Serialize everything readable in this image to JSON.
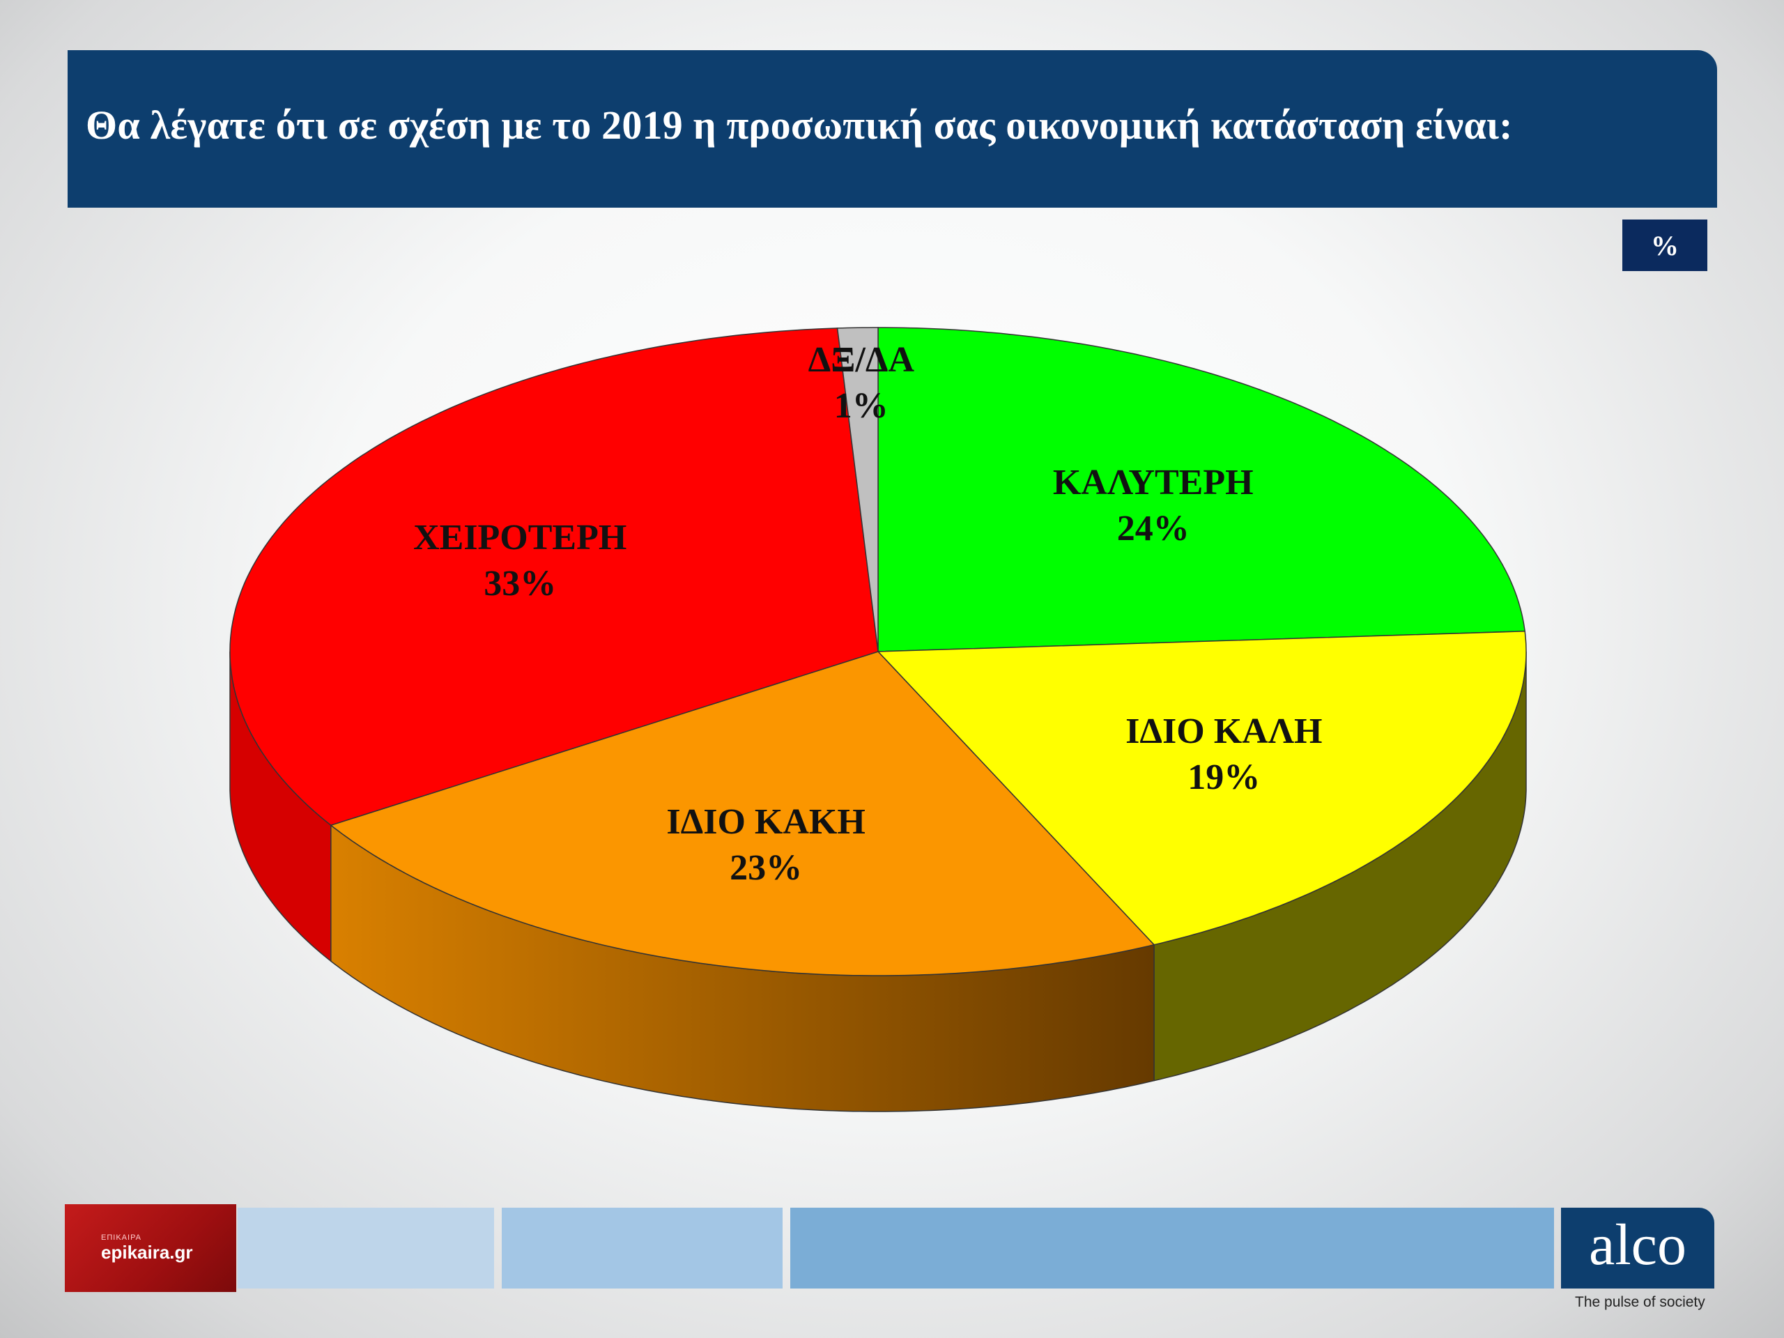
{
  "header": {
    "title": "Θα λέγατε ότι σε σχέση με το 2019 η προσωπική σας οικονομική κατάσταση είναι:",
    "unit_badge": "%"
  },
  "chart_data": {
    "type": "pie",
    "title": "Θα λέγατε ότι σε σχέση με το 2019 η προσωπική σας οικονομική κατάσταση είναι:",
    "unit": "%",
    "legend": "none",
    "slices": [
      {
        "label": "ΚΑΛΥΤΕΡΗ",
        "value": 24,
        "value_label": "24%",
        "color": "#00ff00",
        "side_color": "#00a000"
      },
      {
        "label": "ΙΔΙΟ ΚΑΛΗ",
        "value": 19,
        "value_label": "19%",
        "color": "#ffff00",
        "side_color": "#666600"
      },
      {
        "label": "ΙΔΙΟ ΚΑΚΗ",
        "value": 23,
        "value_label": "23%",
        "color": "#fb9600",
        "side_color": "#b96c00"
      },
      {
        "label": "ΧΕΙΡΟΤΕΡΗ",
        "value": 33,
        "value_label": "33%",
        "color": "#ff0000",
        "side_color": "#d60000"
      },
      {
        "label": "ΔΞ/ΔΑ",
        "value": 1,
        "value_label": "1%",
        "color": "#c0c0c0",
        "side_color": "#8a8a8a"
      }
    ]
  },
  "footer": {
    "left_logo_small": "ΕΠΙΚΑΙΡΑ",
    "left_logo_text": "epikaira.gr",
    "right_logo_text": "alco",
    "tagline": "The pulse of society"
  }
}
